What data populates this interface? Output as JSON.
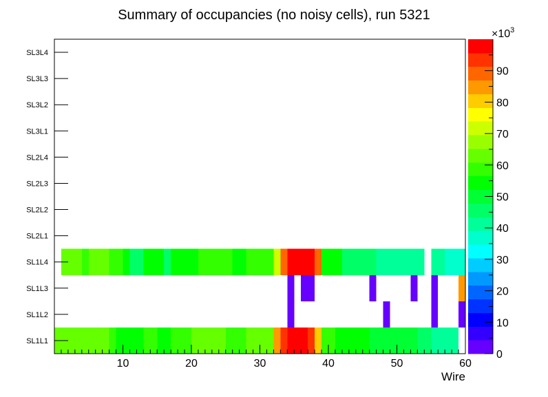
{
  "chart_data": {
    "type": "heatmap",
    "title": "Summary of occupancies (no noisy cells), run 5321",
    "xlabel": "Wire",
    "ylabel": "",
    "xlim": [
      0,
      60
    ],
    "x_ticks": [
      10,
      20,
      30,
      40,
      50,
      60
    ],
    "rows": [
      "SL1L1",
      "SL1L2",
      "SL1L3",
      "SL1L4",
      "SL2L1",
      "SL2L2",
      "SL2L3",
      "SL2L4",
      "SL3L1",
      "SL3L2",
      "SL3L3",
      "SL3L4"
    ],
    "colorbar": {
      "min": 0,
      "max": 100000,
      "multiplier_label": "×10",
      "multiplier_exponent": "3",
      "tick_labels": [
        "0",
        "10",
        "20",
        "30",
        "40",
        "50",
        "60",
        "70",
        "80",
        "90"
      ],
      "palette": [
        "#6600ff",
        "#3300ff",
        "#0000ff",
        "#0033ff",
        "#0066ff",
        "#0099ff",
        "#00ccff",
        "#00ffff",
        "#00ffcc",
        "#00ff99",
        "#00ff66",
        "#00ff33",
        "#00ff00",
        "#33ff00",
        "#66ff00",
        "#99ff00",
        "#ccff00",
        "#ffff00",
        "#ffcc00",
        "#ff9900",
        "#ff6600",
        "#ff3300",
        "#ff0000"
      ]
    },
    "cells": {
      "SL1L1": [
        {
          "x0": 0,
          "x1": 8,
          "value": 63000
        },
        {
          "x0": 8,
          "x1": 9,
          "value": 60000
        },
        {
          "x0": 9,
          "x1": 10,
          "value": 55000
        },
        {
          "x0": 10,
          "x1": 13,
          "value": 53000
        },
        {
          "x0": 13,
          "x1": 15,
          "value": 57000
        },
        {
          "x0": 15,
          "x1": 17,
          "value": 55000
        },
        {
          "x0": 17,
          "x1": 20,
          "value": 57000
        },
        {
          "x0": 20,
          "x1": 25,
          "value": 62000
        },
        {
          "x0": 25,
          "x1": 28,
          "value": 57000
        },
        {
          "x0": 28,
          "x1": 32,
          "value": 62000
        },
        {
          "x0": 32,
          "x1": 33,
          "value": 85000
        },
        {
          "x0": 33,
          "x1": 34,
          "value": 93000
        },
        {
          "x0": 34,
          "x1": 37,
          "value": 100000
        },
        {
          "x0": 37,
          "x1": 38,
          "value": 93000
        },
        {
          "x0": 38,
          "x1": 39,
          "value": 79000
        },
        {
          "x0": 39,
          "x1": 40,
          "value": 60000
        },
        {
          "x0": 40,
          "x1": 41,
          "value": 57000
        },
        {
          "x0": 41,
          "x1": 46,
          "value": 53000
        },
        {
          "x0": 46,
          "x1": 53,
          "value": 50000
        },
        {
          "x0": 53,
          "x1": 55,
          "value": 45000
        },
        {
          "x0": 55,
          "x1": 59,
          "value": 41000
        }
      ],
      "SL1L2": [
        {
          "x0": 34,
          "x1": 35,
          "value": 2000
        },
        {
          "x0": 48,
          "x1": 49,
          "value": 2000
        },
        {
          "x0": 55,
          "x1": 56,
          "value": 2000
        },
        {
          "x0": 59,
          "x1": 60,
          "value": 2000
        }
      ],
      "SL1L3": [
        {
          "x0": 34,
          "x1": 35,
          "value": 2000
        },
        {
          "x0": 36,
          "x1": 38,
          "value": 2000
        },
        {
          "x0": 46,
          "x1": 47,
          "value": 2000
        },
        {
          "x0": 52,
          "x1": 53,
          "value": 2000
        },
        {
          "x0": 55,
          "x1": 56,
          "value": 2000
        },
        {
          "x0": 59,
          "x1": 60,
          "value": 85000
        }
      ],
      "SL1L4": [
        {
          "x0": 1,
          "x1": 4,
          "value": 62000
        },
        {
          "x0": 4,
          "x1": 5,
          "value": 60000
        },
        {
          "x0": 5,
          "x1": 8,
          "value": 62000
        },
        {
          "x0": 8,
          "x1": 10,
          "value": 58000
        },
        {
          "x0": 10,
          "x1": 11,
          "value": 55000
        },
        {
          "x0": 11,
          "x1": 13,
          "value": 45000
        },
        {
          "x0": 13,
          "x1": 16,
          "value": 53000
        },
        {
          "x0": 16,
          "x1": 17,
          "value": 45000
        },
        {
          "x0": 17,
          "x1": 21,
          "value": 55000
        },
        {
          "x0": 21,
          "x1": 26,
          "value": 57000
        },
        {
          "x0": 26,
          "x1": 28,
          "value": 55000
        },
        {
          "x0": 28,
          "x1": 32,
          "value": 57000
        },
        {
          "x0": 32,
          "x1": 33,
          "value": 70000
        },
        {
          "x0": 33,
          "x1": 34,
          "value": 87000
        },
        {
          "x0": 34,
          "x1": 38,
          "value": 97000
        },
        {
          "x0": 38,
          "x1": 39,
          "value": 87000
        },
        {
          "x0": 39,
          "x1": 42,
          "value": 53000
        },
        {
          "x0": 42,
          "x1": 47,
          "value": 45000
        },
        {
          "x0": 47,
          "x1": 54,
          "value": 42000
        },
        {
          "x0": 55,
          "x1": 57,
          "value": 42000
        },
        {
          "x0": 57,
          "x1": 60,
          "value": 37000
        }
      ]
    }
  }
}
